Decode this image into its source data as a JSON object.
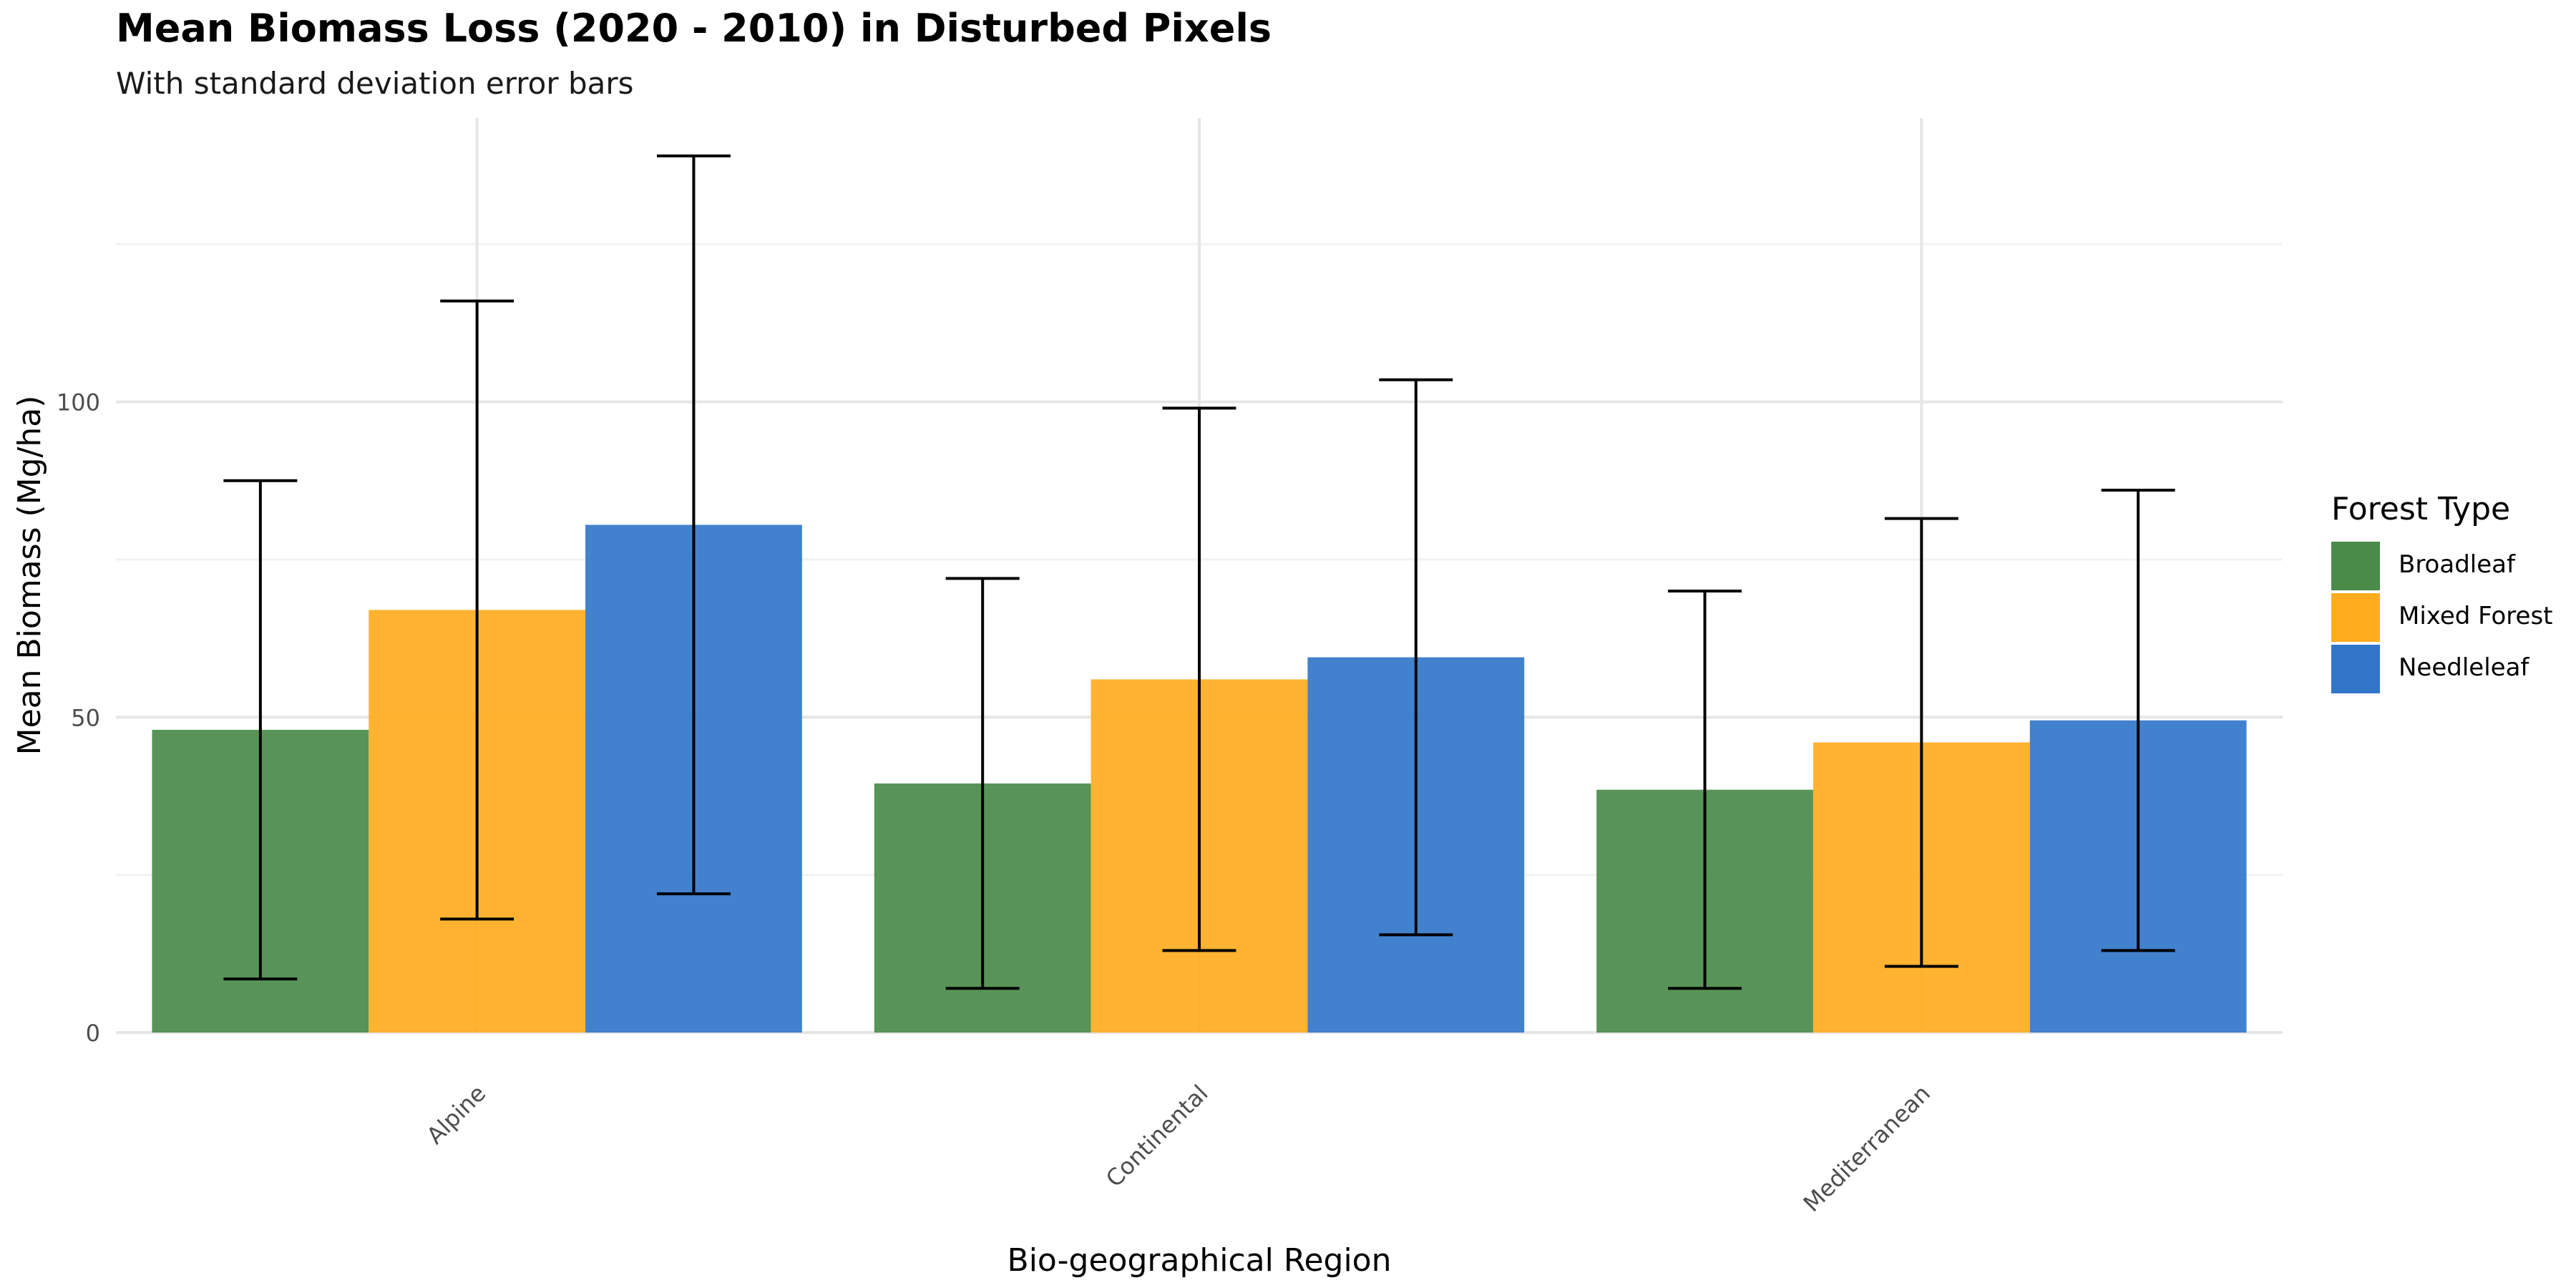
{
  "chart_data": {
    "type": "bar",
    "title": "Mean Biomass Loss (2020 - 2010) in Disturbed Pixels",
    "subtitle": "With standard deviation error bars",
    "xlabel": "Bio-geographical Region",
    "ylabel": "Mean Biomass (Mg/ha)",
    "categories": [
      "Alpine",
      "Continental",
      "Mediterranean"
    ],
    "series": [
      {
        "name": "Broadleaf",
        "color": "#4a8b49",
        "values": [
          48,
          39.5,
          38.5
        ],
        "sd": [
          39.5,
          32.5,
          31.5
        ]
      },
      {
        "name": "Mixed Forest",
        "color": "#ffad1f",
        "values": [
          67,
          56,
          46
        ],
        "sd": [
          49,
          43,
          35.5
        ]
      },
      {
        "name": "Needleleaf",
        "color": "#3276c9",
        "values": [
          80.5,
          59.5,
          49.5
        ],
        "sd": [
          58.5,
          44,
          36.5
        ]
      }
    ],
    "ylim": [
      0,
      145
    ],
    "yticks": [
      0,
      50,
      100
    ],
    "grid": true,
    "legend": {
      "title": "Forest Type",
      "position": "right"
    }
  }
}
